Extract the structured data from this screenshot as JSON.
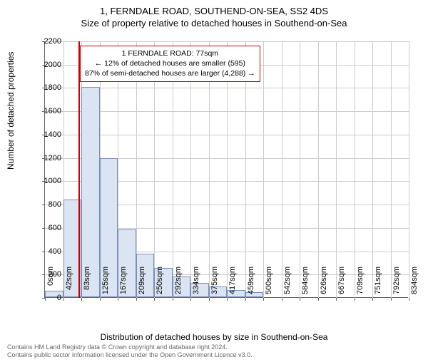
{
  "title": "1, FERNDALE ROAD, SOUTHEND-ON-SEA, SS2 4DS",
  "subtitle": "Size of property relative to detached houses in Southend-on-Sea",
  "chart": {
    "type": "histogram",
    "xlabel": "Distribution of detached houses by size in Southend-on-Sea",
    "ylabel": "Number of detached properties",
    "ylim": [
      0,
      2200
    ],
    "ytick_step": 200,
    "xlim_sqm": [
      0,
      834
    ],
    "x_tick_labels": [
      "0sqm",
      "42sqm",
      "83sqm",
      "125sqm",
      "167sqm",
      "209sqm",
      "250sqm",
      "292sqm",
      "334sqm",
      "375sqm",
      "417sqm",
      "459sqm",
      "500sqm",
      "542sqm",
      "584sqm",
      "626sqm",
      "667sqm",
      "709sqm",
      "751sqm",
      "792sqm",
      "834sqm"
    ],
    "bin_width_sqm": 41.7,
    "bar_heights": [
      55,
      835,
      1800,
      1190,
      580,
      370,
      250,
      175,
      120,
      90,
      60,
      40,
      0,
      0,
      0,
      0,
      0,
      0,
      0,
      0
    ],
    "bar_fill": "#dbe4f2",
    "bar_border": "#7a8fb5",
    "grid_color": "#cccccc",
    "background": "#ffffff",
    "marker_value_sqm": 77,
    "marker_color": "#cc0000",
    "label_fontsize": 12,
    "tick_fontsize": 11,
    "title_fontsize": 13
  },
  "annotation": {
    "line1": "1 FERNDALE ROAD: 77sqm",
    "line2": "← 12% of detached houses are smaller (595)",
    "line3": "87% of semi-detached houses are larger (4,288) →",
    "border_color": "#cc0000"
  },
  "footer": {
    "line1": "Contains HM Land Registry data © Crown copyright and database right 2024.",
    "line2": "Contains public sector information licensed under the Open Government Licence v3.0."
  }
}
